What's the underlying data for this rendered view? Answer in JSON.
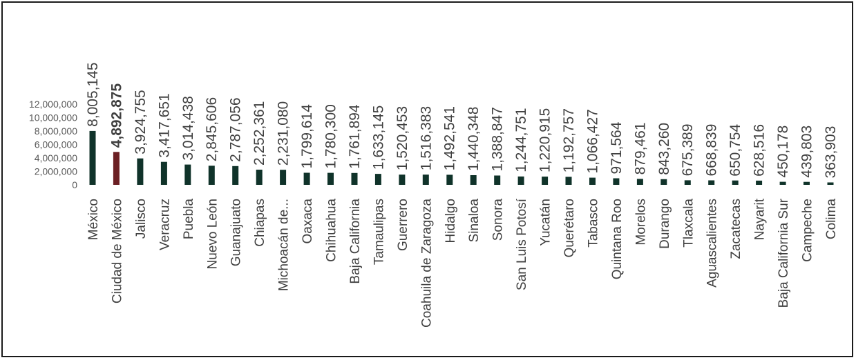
{
  "chart_data": {
    "type": "bar",
    "title": "",
    "xlabel": "",
    "ylabel": "",
    "ylim": [
      0,
      12000000
    ],
    "yticks": [
      0,
      2000000,
      4000000,
      6000000,
      8000000,
      10000000,
      12000000
    ],
    "ytick_labels": [
      "0",
      "2,000,000",
      "4,000,000",
      "6,000,000",
      "8,000,000",
      "10,000,000",
      "12,000,000"
    ],
    "grid": false,
    "legend": "none",
    "categories": [
      "México",
      "Ciudad de México",
      "Jalisco",
      "Veracruz",
      "Puebla",
      "Nuevo León",
      "Guanajuato",
      "Chiapas",
      "Michoacán de...",
      "Oaxaca",
      "Chihuahua",
      "Baja California",
      "Tamaulipas",
      "Guerrero",
      "Coahuila de Zaragoza",
      "Hidalgo",
      "Sinaloa",
      "Sonora",
      "San Luis Potosí",
      "Yucatán",
      "Querétaro",
      "Tabasco",
      "Quintana Roo",
      "Morelos",
      "Durango",
      "Tlaxcala",
      "Aguascalientes",
      "Zacatecas",
      "Nayarit",
      "Baja California Sur",
      "Campeche",
      "Colima"
    ],
    "values": [
      8005145,
      4892875,
      3924755,
      3417651,
      3014438,
      2845606,
      2787056,
      2252361,
      2231080,
      1799614,
      1780300,
      1761894,
      1633145,
      1520453,
      1516383,
      1492541,
      1440348,
      1388847,
      1244751,
      1220915,
      1192757,
      1066427,
      971564,
      879461,
      843260,
      675389,
      668839,
      650754,
      628516,
      450178,
      439803,
      363903
    ],
    "data_labels": [
      "8,005,145",
      "4,892,875",
      "3,924,755",
      "3,417,651",
      "3,014,438",
      "2,845,606",
      "2,787,056",
      "2,252,361",
      "2,231,080",
      "1,799,614",
      "1,780,300",
      "1,761,894",
      "1,633,145",
      "1,520,453",
      "1,516,383",
      "1,492,541",
      "1,440,348",
      "1,388,847",
      "1,244,751",
      "1,220,915",
      "1,192,757",
      "1,066,427",
      "971,564",
      "879,461",
      "843,260",
      "675,389",
      "668,839",
      "650,754",
      "628,516",
      "450,178",
      "439,803",
      "363,903"
    ],
    "highlight_index": 1,
    "colors": {
      "bar": "#10332a",
      "highlight": "#6b1f23",
      "label": "#404040",
      "tick": "#595959"
    }
  }
}
